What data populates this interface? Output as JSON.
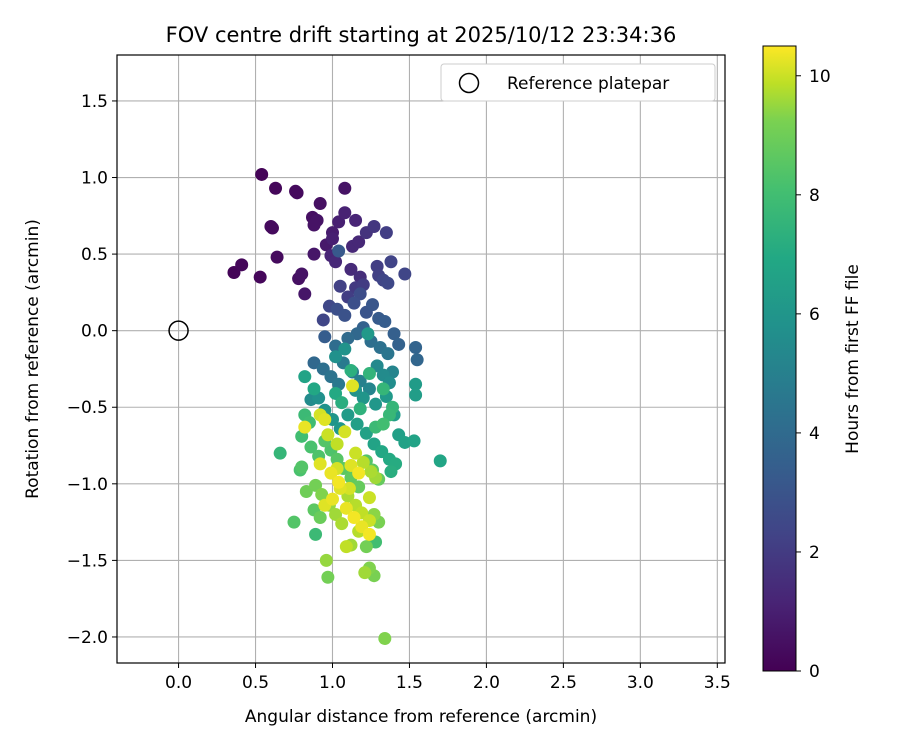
{
  "chart_data": {
    "type": "scatter",
    "title": "FOV centre drift starting at 2025/10/12 23:34:36",
    "xlabel": "Angular distance from reference (arcmin)",
    "ylabel": "Rotation from reference (arcmin)",
    "xlim": [
      -0.4,
      3.55
    ],
    "ylim": [
      -2.17,
      1.8
    ],
    "xticks": [
      0.0,
      0.5,
      1.0,
      1.5,
      2.0,
      2.5,
      3.0,
      3.5
    ],
    "xtick_labels": [
      "0.0",
      "0.5",
      "1.0",
      "1.5",
      "2.0",
      "2.5",
      "3.0",
      "3.5"
    ],
    "yticks": [
      -2.0,
      -1.5,
      -1.0,
      -0.5,
      0.0,
      0.5,
      1.0,
      1.5
    ],
    "ytick_labels": [
      "−2.0",
      "−1.5",
      "−1.0",
      "−0.5",
      "0.0",
      "0.5",
      "1.0",
      "1.5"
    ],
    "grid": true,
    "colormap": "viridis",
    "colorbar": {
      "label": "Hours from first FF file",
      "range": [
        0,
        10.5
      ],
      "ticks": [
        0,
        2,
        4,
        6,
        8,
        10
      ],
      "tick_labels": [
        "0",
        "2",
        "4",
        "6",
        "8",
        "10"
      ]
    },
    "legend": {
      "position": "top-right",
      "entries": [
        "Reference platepar"
      ]
    },
    "reference_point": {
      "x": 0.0,
      "y": 0.0
    },
    "series": [
      {
        "points": [
          [
            0.54,
            1.02,
            0.1
          ],
          [
            0.63,
            0.93,
            0.2
          ],
          [
            0.77,
            0.9,
            0.3
          ],
          [
            0.76,
            0.91,
            0.3
          ],
          [
            0.92,
            0.83,
            0.5
          ],
          [
            1.08,
            0.93,
            0.6
          ],
          [
            0.87,
            0.74,
            0.5
          ],
          [
            0.9,
            0.72,
            0.6
          ],
          [
            0.88,
            0.69,
            0.6
          ],
          [
            0.6,
            0.68,
            0.3
          ],
          [
            0.61,
            0.67,
            0.3
          ],
          [
            0.64,
            0.48,
            0.3
          ],
          [
            0.41,
            0.43,
            0.2
          ],
          [
            0.36,
            0.38,
            0.1
          ],
          [
            0.53,
            0.35,
            0.2
          ],
          [
            0.78,
            0.34,
            0.5
          ],
          [
            0.8,
            0.37,
            0.6
          ],
          [
            0.82,
            0.24,
            0.7
          ],
          [
            0.88,
            0.5,
            0.7
          ],
          [
            0.96,
            0.56,
            0.8
          ],
          [
            1.0,
            0.64,
            0.9
          ],
          [
            1.0,
            0.6,
            1.0
          ],
          [
            1.04,
            0.71,
            1.0
          ],
          [
            1.08,
            0.77,
            1.1
          ],
          [
            1.15,
            0.72,
            1.2
          ],
          [
            1.13,
            0.55,
            1.3
          ],
          [
            1.17,
            0.58,
            1.3
          ],
          [
            0.99,
            0.49,
            1.2
          ],
          [
            1.02,
            0.45,
            1.3
          ],
          [
            1.12,
            0.4,
            1.4
          ],
          [
            1.18,
            0.35,
            1.5
          ],
          [
            1.22,
            0.64,
            1.7
          ],
          [
            1.27,
            0.68,
            1.8
          ],
          [
            1.35,
            0.64,
            2.1
          ],
          [
            1.38,
            0.45,
            2.3
          ],
          [
            1.47,
            0.37,
            2.4
          ],
          [
            1.29,
            0.42,
            2.1
          ],
          [
            1.3,
            0.36,
            2.2
          ],
          [
            1.33,
            0.33,
            2.4
          ],
          [
            1.36,
            0.31,
            2.5
          ],
          [
            1.2,
            0.3,
            2.0
          ],
          [
            1.15,
            0.28,
            1.9
          ],
          [
            1.1,
            0.22,
            2.1
          ],
          [
            1.05,
            0.29,
            2.2
          ],
          [
            0.98,
            0.16,
            2.5
          ],
          [
            0.94,
            0.07,
            2.4
          ],
          [
            1.03,
            0.14,
            2.8
          ],
          [
            1.08,
            0.1,
            2.9
          ],
          [
            1.14,
            0.18,
            2.8
          ],
          [
            1.18,
            0.24,
            2.7
          ],
          [
            1.22,
            0.12,
            3.0
          ],
          [
            1.26,
            0.17,
            3.1
          ],
          [
            1.3,
            0.08,
            3.3
          ],
          [
            1.34,
            0.06,
            3.4
          ],
          [
            1.4,
            -0.02,
            3.5
          ],
          [
            1.43,
            -0.09,
            3.6
          ],
          [
            1.54,
            -0.11,
            3.7
          ],
          [
            1.55,
            -0.19,
            3.8
          ],
          [
            1.04,
            0.52,
            3.2
          ],
          [
            1.2,
            0.02,
            3.6
          ],
          [
            1.16,
            -0.02,
            3.9
          ],
          [
            1.1,
            -0.05,
            4.0
          ],
          [
            0.95,
            -0.04,
            3.4
          ],
          [
            1.02,
            -0.1,
            4.1
          ],
          [
            1.25,
            -0.07,
            4.2
          ],
          [
            1.31,
            -0.11,
            4.3
          ],
          [
            1.36,
            -0.15,
            4.5
          ],
          [
            0.88,
            -0.21,
            3.9
          ],
          [
            0.94,
            -0.25,
            4.2
          ],
          [
            0.99,
            -0.3,
            4.4
          ],
          [
            1.04,
            -0.35,
            4.6
          ],
          [
            1.07,
            -0.21,
            4.7
          ],
          [
            1.13,
            -0.27,
            4.8
          ],
          [
            1.18,
            -0.33,
            5.0
          ],
          [
            1.24,
            -0.38,
            5.2
          ],
          [
            1.29,
            -0.23,
            5.4
          ],
          [
            1.33,
            -0.29,
            5.5
          ],
          [
            1.37,
            -0.34,
            5.6
          ],
          [
            1.39,
            -0.27,
            5.2
          ],
          [
            1.54,
            -0.35,
            6.3
          ],
          [
            1.54,
            -0.42,
            6.4
          ],
          [
            1.02,
            -0.17,
            5.8
          ],
          [
            1.08,
            -0.12,
            5.9
          ],
          [
            1.23,
            -0.02,
            6.2
          ],
          [
            1.15,
            -0.39,
            5.9
          ],
          [
            1.2,
            -0.44,
            6.0
          ],
          [
            1.28,
            -0.48,
            6.1
          ],
          [
            1.35,
            -0.43,
            6.2
          ],
          [
            1.4,
            -0.55,
            6.4
          ],
          [
            1.43,
            -0.68,
            6.5
          ],
          [
            1.47,
            -0.73,
            6.6
          ],
          [
            1.53,
            -0.72,
            6.7
          ],
          [
            1.7,
            -0.85,
            6.8
          ],
          [
            0.86,
            -0.45,
            5.5
          ],
          [
            0.91,
            -0.44,
            5.8
          ],
          [
            0.95,
            -0.52,
            5.9
          ],
          [
            1.0,
            -0.58,
            6.0
          ],
          [
            1.05,
            -0.64,
            6.1
          ],
          [
            1.1,
            -0.55,
            6.3
          ],
          [
            1.16,
            -0.61,
            6.5
          ],
          [
            1.22,
            -0.67,
            6.6
          ],
          [
            1.27,
            -0.74,
            6.7
          ],
          [
            1.32,
            -0.79,
            6.9
          ],
          [
            1.37,
            -0.84,
            7.0
          ],
          [
            1.41,
            -0.87,
            7.1
          ],
          [
            1.38,
            -0.92,
            7.2
          ],
          [
            0.82,
            -0.3,
            6.7
          ],
          [
            0.88,
            -0.38,
            6.9
          ],
          [
            1.02,
            -0.41,
            7.0
          ],
          [
            1.06,
            -0.47,
            7.2
          ],
          [
            1.12,
            -0.26,
            7.3
          ],
          [
            1.18,
            -0.51,
            7.4
          ],
          [
            1.24,
            -0.28,
            7.5
          ],
          [
            1.33,
            -0.38,
            7.6
          ],
          [
            1.37,
            -0.55,
            7.7
          ],
          [
            1.39,
            -0.5,
            7.6
          ],
          [
            0.82,
            -0.55,
            7.8
          ],
          [
            0.85,
            -0.6,
            7.9
          ],
          [
            0.8,
            -0.69,
            8.0
          ],
          [
            0.86,
            -0.76,
            8.2
          ],
          [
            0.91,
            -0.82,
            8.3
          ],
          [
            0.95,
            -0.72,
            8.4
          ],
          [
            0.99,
            -0.78,
            8.3
          ],
          [
            1.03,
            -0.84,
            8.5
          ],
          [
            1.07,
            -0.9,
            8.6
          ],
          [
            1.12,
            -0.96,
            8.7
          ],
          [
            1.17,
            -1.02,
            8.8
          ],
          [
            1.22,
            -0.85,
            8.4
          ],
          [
            1.26,
            -0.91,
            8.6
          ],
          [
            1.3,
            -0.97,
            8.8
          ],
          [
            1.33,
            -0.61,
            8.0
          ],
          [
            1.28,
            -0.63,
            7.8
          ],
          [
            0.66,
            -0.8,
            7.6
          ],
          [
            0.79,
            -0.91,
            8.2
          ],
          [
            0.8,
            -0.89,
            8.4
          ],
          [
            0.75,
            -1.25,
            8.4
          ],
          [
            0.89,
            -1.33,
            7.8
          ],
          [
            0.88,
            -1.17,
            8.6
          ],
          [
            0.92,
            -1.22,
            8.9
          ],
          [
            0.83,
            -1.05,
            9.0
          ],
          [
            0.89,
            -1.01,
            9.1
          ],
          [
            0.93,
            -1.07,
            9.3
          ],
          [
            0.98,
            -1.14,
            9.5
          ],
          [
            1.02,
            -1.2,
            9.6
          ],
          [
            1.06,
            -1.26,
            9.7
          ],
          [
            1.1,
            -1.08,
            9.7
          ],
          [
            1.15,
            -1.14,
            9.8
          ],
          [
            1.19,
            -1.19,
            9.9
          ],
          [
            1.24,
            -1.24,
            10.0
          ],
          [
            1.27,
            -1.2,
            9.4
          ],
          [
            1.3,
            -1.25,
            9.2
          ],
          [
            1.28,
            -1.38,
            8.0
          ],
          [
            1.22,
            -1.41,
            9.1
          ],
          [
            1.12,
            -1.4,
            9.6
          ],
          [
            1.09,
            -1.41,
            9.9
          ],
          [
            1.17,
            -1.31,
            9.8
          ],
          [
            1.21,
            -1.58,
            9.6
          ],
          [
            1.24,
            -1.55,
            9.3
          ],
          [
            1.27,
            -1.6,
            9.2
          ],
          [
            0.96,
            -1.5,
            9.5
          ],
          [
            0.97,
            -1.61,
            9.1
          ],
          [
            1.34,
            -2.01,
            9.3
          ],
          [
            0.92,
            -0.55,
            10.1
          ],
          [
            0.95,
            -0.58,
            10.2
          ],
          [
            0.82,
            -0.63,
            10.3
          ],
          [
            0.97,
            -0.68,
            10.0
          ],
          [
            1.03,
            -0.74,
            9.9
          ],
          [
            1.13,
            -0.36,
            10.2
          ],
          [
            1.08,
            -0.66,
            10.1
          ],
          [
            1.15,
            -0.8,
            10.0
          ],
          [
            1.2,
            -0.86,
            9.8
          ],
          [
            1.25,
            -0.92,
            9.7
          ],
          [
            1.28,
            -0.96,
            9.6
          ],
          [
            1.24,
            -1.09,
            10.0
          ],
          [
            1.12,
            -0.88,
            10.2
          ],
          [
            0.92,
            -0.87,
            10.2
          ],
          [
            0.99,
            -0.93,
            10.3
          ],
          [
            1.04,
            -0.99,
            10.4
          ],
          [
            1.17,
            -0.93,
            10.4
          ],
          [
            1.05,
            -1.03,
            10.2
          ],
          [
            1.0,
            -1.1,
            10.3
          ],
          [
            0.95,
            -1.14,
            10.2
          ],
          [
            1.09,
            -1.16,
            10.3
          ],
          [
            1.14,
            -1.22,
            10.4
          ],
          [
            1.19,
            -1.28,
            10.3
          ],
          [
            1.24,
            -1.33,
            10.4
          ],
          [
            1.03,
            -0.9,
            10.1
          ],
          [
            1.11,
            -1.03,
            10.1
          ]
        ]
      }
    ]
  }
}
